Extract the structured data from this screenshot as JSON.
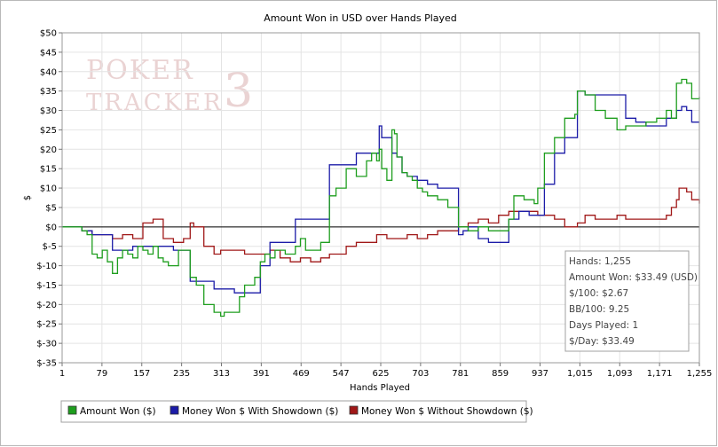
{
  "chart_data": {
    "type": "line",
    "title": "Amount Won in USD over Hands Played",
    "xlabel": "Hands Played",
    "ylabel": "$",
    "xlim": [
      1,
      1255
    ],
    "ylim": [
      -35,
      50
    ],
    "grid": true,
    "xticks": [
      "1",
      "79",
      "157",
      "235",
      "313",
      "391",
      "469",
      "547",
      "625",
      "703",
      "781",
      "859",
      "937",
      "1,015",
      "1,093",
      "1,171",
      "1,255"
    ],
    "yticks": [
      "$50",
      "$45",
      "$40",
      "$35",
      "$30",
      "$25",
      "$20",
      "$15",
      "$10",
      "$5",
      "$0",
      "$-5",
      "$-10",
      "$-15",
      "$-20",
      "$-25",
      "$-30",
      "$-35"
    ],
    "series": [
      {
        "name": "Amount Won ($)",
        "color": "#1e9e1e",
        "x": [
          1,
          30,
          40,
          50,
          60,
          70,
          80,
          90,
          100,
          110,
          120,
          130,
          140,
          150,
          160,
          170,
          180,
          190,
          200,
          210,
          230,
          245,
          253,
          265,
          280,
          300,
          313,
          320,
          330,
          340,
          350,
          360,
          380,
          391,
          400,
          410,
          420,
          430,
          440,
          450,
          460,
          470,
          480,
          490,
          500,
          510,
          520,
          527,
          540,
          560,
          580,
          600,
          610,
          620,
          625,
          630,
          640,
          650,
          655,
          660,
          670,
          680,
          690,
          700,
          710,
          720,
          740,
          760,
          781,
          790,
          800,
          820,
          840,
          860,
          880,
          890,
          900,
          910,
          920,
          930,
          937,
          950,
          970,
          990,
          1010,
          1015,
          1030,
          1050,
          1070,
          1093,
          1110,
          1130,
          1150,
          1171,
          1190,
          1200,
          1210,
          1220,
          1230,
          1240,
          1255
        ],
        "y": [
          0,
          0,
          -1,
          -2,
          -7,
          -8,
          -6,
          -9,
          -12,
          -8,
          -6,
          -7,
          -8,
          -5,
          -6,
          -7,
          -5,
          -8,
          -9,
          -10,
          -6,
          -6,
          -13,
          -15,
          -20,
          -22,
          -23,
          -22,
          -22,
          -22,
          -18,
          -15,
          -13,
          -9,
          -7,
          -8,
          -6,
          -6,
          -7,
          -7,
          -5,
          -3,
          -6,
          -6,
          -6,
          -4,
          -4,
          8,
          10,
          15,
          13,
          17,
          19,
          17,
          20,
          15,
          12,
          25,
          24,
          18,
          14,
          13,
          12,
          10,
          9,
          8,
          7,
          5,
          0,
          0,
          -1,
          0,
          -1,
          -1,
          2,
          8,
          8,
          7,
          7,
          6,
          10,
          19,
          23,
          28,
          29,
          35,
          34,
          30,
          28,
          25,
          26,
          26,
          27,
          28,
          30,
          28,
          37,
          38,
          37,
          33,
          33.49
        ]
      },
      {
        "name": "Money Won $ With Showdown ($)",
        "color": "#1c1ca8",
        "x": [
          1,
          20,
          40,
          60,
          80,
          100,
          120,
          140,
          160,
          180,
          200,
          220,
          240,
          253,
          260,
          280,
          300,
          313,
          320,
          340,
          380,
          391,
          410,
          440,
          460,
          470,
          480,
          500,
          520,
          527,
          540,
          560,
          580,
          600,
          620,
          625,
          630,
          640,
          650,
          660,
          670,
          680,
          700,
          720,
          740,
          760,
          781,
          790,
          800,
          820,
          840,
          860,
          880,
          900,
          920,
          937,
          950,
          970,
          990,
          1015,
          1030,
          1050,
          1070,
          1093,
          1110,
          1130,
          1150,
          1171,
          1190,
          1210,
          1220,
          1230,
          1240,
          1255
        ],
        "y": [
          0,
          0,
          -1,
          -2,
          -2,
          -6,
          -6,
          -5,
          -5,
          -5,
          -5,
          -6,
          -6,
          -14,
          -14,
          -14,
          -16,
          -16,
          -16,
          -17,
          -17,
          -10,
          -4,
          -4,
          2,
          2,
          2,
          2,
          2,
          16,
          16,
          16,
          19,
          19,
          19,
          26,
          23,
          23,
          19,
          18,
          14,
          13,
          12,
          11,
          10,
          10,
          -2,
          -1,
          0,
          -3,
          -4,
          -4,
          2,
          4,
          3,
          3,
          11,
          19,
          23,
          35,
          34,
          34,
          34,
          34,
          28,
          27,
          26,
          26,
          28,
          30,
          31,
          30,
          27,
          27
        ]
      },
      {
        "name": "Money Won $ Without Showdown ($)",
        "color": "#a01818",
        "x": [
          1,
          20,
          40,
          60,
          80,
          100,
          120,
          140,
          160,
          180,
          200,
          220,
          240,
          253,
          260,
          280,
          300,
          313,
          320,
          340,
          360,
          380,
          391,
          410,
          430,
          450,
          470,
          490,
          510,
          527,
          540,
          560,
          580,
          600,
          620,
          640,
          660,
          680,
          700,
          720,
          740,
          760,
          781,
          800,
          820,
          840,
          860,
          880,
          900,
          920,
          937,
          950,
          970,
          990,
          1015,
          1030,
          1050,
          1070,
          1093,
          1110,
          1130,
          1150,
          1171,
          1190,
          1200,
          1210,
          1215,
          1230,
          1240,
          1255
        ],
        "y": [
          0,
          0,
          -1,
          -2,
          -2,
          -3,
          -2,
          -3,
          1,
          2,
          -3,
          -4,
          -3,
          1,
          0,
          -5,
          -7,
          -6,
          -6,
          -6,
          -7,
          -7,
          -7,
          -6,
          -8,
          -9,
          -8,
          -9,
          -8,
          -7,
          -7,
          -5,
          -4,
          -4,
          -2,
          -3,
          -3,
          -2,
          -3,
          -2,
          -1,
          -1,
          0,
          1,
          2,
          1,
          3,
          4,
          4,
          4,
          3,
          3,
          2,
          0,
          1,
          3,
          2,
          2,
          3,
          2,
          2,
          2,
          2,
          3,
          5,
          7,
          10,
          9,
          7,
          6
        ]
      }
    ],
    "stats": {
      "hands": "Hands: 1,255",
      "amount_won": "Amount Won: $33.49 (USD)",
      "per100": "$/100: $2.67",
      "bb100": "BB/100: 9.25",
      "days": "Days Played: 1",
      "per_day": "$/Day: $33.49"
    },
    "watermark": {
      "line1": "POKER",
      "line2": "TRACKER",
      "numeral": "3"
    }
  }
}
